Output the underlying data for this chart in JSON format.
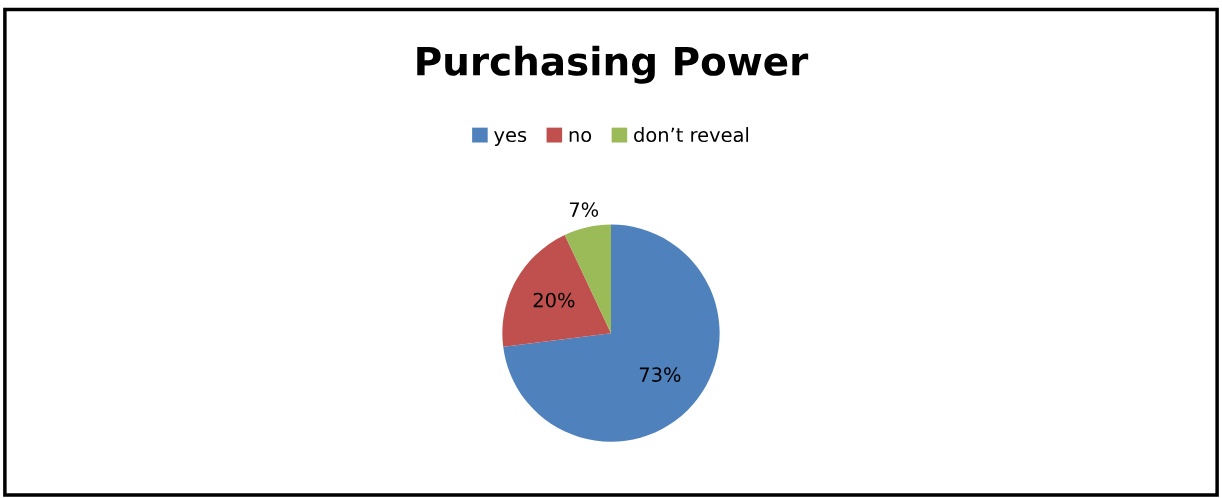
{
  "chart_data": {
    "type": "pie",
    "title": "Purchasing Power",
    "categories": [
      "yes",
      "no",
      "don’t reveal"
    ],
    "values": [
      73,
      20,
      7
    ],
    "colors": [
      "#4f81bd",
      "#c0504d",
      "#9bbb59"
    ],
    "value_labels": [
      "73%",
      "20%",
      "7%"
    ],
    "legend": "top"
  }
}
